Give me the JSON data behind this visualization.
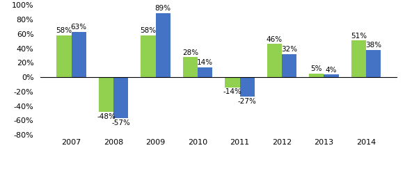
{
  "years": [
    "2007",
    "2008",
    "2009",
    "2010",
    "2011",
    "2012",
    "2013",
    "2014"
  ],
  "birla_values": [
    58,
    -48,
    58,
    28,
    -14,
    46,
    5,
    51
  ],
  "cnx_values": [
    63,
    -57,
    89,
    14,
    -27,
    32,
    4,
    38
  ],
  "birla_color": "#92d050",
  "cnx_color": "#4472c4",
  "ylim": [
    -80,
    100
  ],
  "yticks": [
    -80,
    -60,
    -40,
    -20,
    0,
    20,
    40,
    60,
    80,
    100
  ],
  "bar_width": 0.35,
  "label_fontsize": 7.5,
  "tick_fontsize": 8,
  "legend_fontsize": 8.5
}
